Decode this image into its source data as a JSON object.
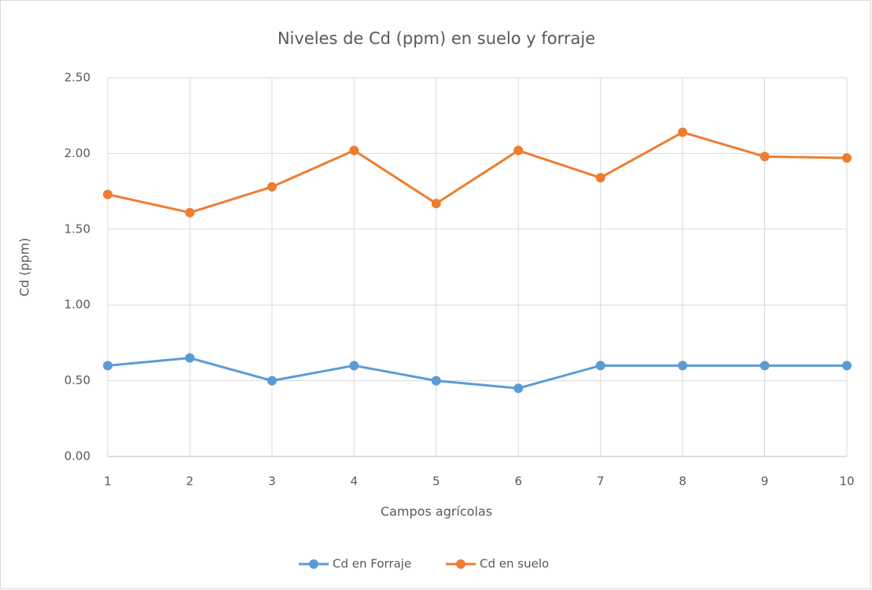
{
  "chart_data": {
    "type": "line",
    "title": "Niveles de Cd (ppm) en suelo y forraje",
    "x_label": "Campos agrícolas",
    "y_label": "Cd (ppm)",
    "x": [
      1,
      2,
      3,
      4,
      5,
      6,
      7,
      8,
      9,
      10
    ],
    "xlim": [
      1,
      10
    ],
    "xticks": [
      1,
      2,
      3,
      4,
      5,
      6,
      7,
      8,
      9,
      10
    ],
    "ylim": [
      0,
      2.5
    ],
    "yticks": [
      {
        "value": 0,
        "label": "0.00"
      },
      {
        "value": 0.5,
        "label": "0.50"
      },
      {
        "value": 1,
        "label": "1.00"
      },
      {
        "value": 1.5,
        "label": "1.50"
      },
      {
        "value": 2,
        "label": "2.00"
      },
      {
        "value": 2.5,
        "label": "2.50"
      }
    ],
    "grid": true,
    "legend": "bottom",
    "series": [
      {
        "name": "Cd en Forraje",
        "color": "#5b9bd5",
        "values": [
          0.6,
          0.65,
          0.5,
          0.6,
          0.5,
          0.45,
          0.6,
          0.6,
          0.6,
          0.6
        ]
      },
      {
        "name": "Cd en suelo",
        "color": "#ed7d31",
        "values": [
          1.73,
          1.61,
          1.78,
          2.02,
          1.67,
          2.02,
          1.84,
          2.14,
          1.98,
          1.97
        ]
      }
    ]
  }
}
